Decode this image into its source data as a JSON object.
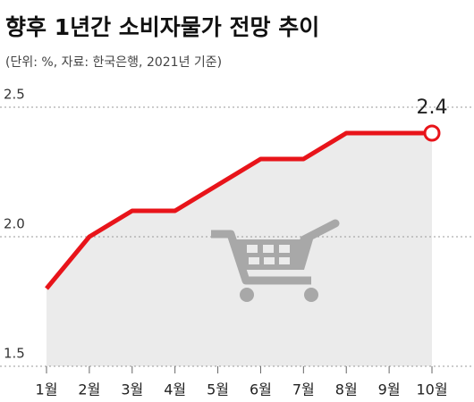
{
  "chart_data": {
    "type": "line",
    "title": "향후 1년간 소비자물가 전망 추이",
    "subtitle": "(단위: %, 자료: 한국은행, 2021년 기준)",
    "categories": [
      "1월",
      "2월",
      "3월",
      "4월",
      "5월",
      "6월",
      "7월",
      "8월",
      "9월",
      "10월"
    ],
    "values": [
      1.8,
      2.0,
      2.1,
      2.1,
      2.2,
      2.3,
      2.3,
      2.4,
      2.4,
      2.4
    ],
    "color": "#e8141a",
    "ylim": [
      1.5,
      2.5
    ],
    "yticks": [
      1.5,
      {
        "value": 2,
        "label": "2.0"
      },
      2.5
    ],
    "grid": true
  }
}
